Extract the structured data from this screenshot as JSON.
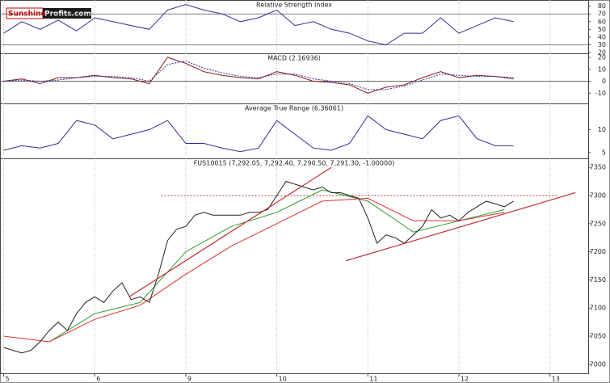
{
  "logo": {
    "brand": "Sunshine",
    "suffix": "Profits.com"
  },
  "chart_data": [
    {
      "type": "line",
      "title": "Relative Strength Index",
      "x": [
        0,
        0.2,
        0.4,
        0.6,
        0.8,
        1.0,
        1.2,
        1.4,
        1.6,
        1.8,
        2.0,
        2.2,
        2.4,
        2.6,
        2.8,
        3.0,
        3.2,
        3.4,
        3.6,
        3.8,
        4.0,
        4.2,
        4.4,
        4.6,
        4.8,
        5.0,
        5.2,
        5.4,
        5.6
      ],
      "series": [
        {
          "color": "#2e2e9e",
          "values": [
            45,
            60,
            50,
            62,
            48,
            65,
            60,
            55,
            50,
            75,
            82,
            75,
            70,
            60,
            65,
            75,
            55,
            60,
            50,
            45,
            35,
            30,
            45,
            45,
            65,
            45,
            55,
            65,
            60
          ]
        }
      ],
      "xlim": [
        -0.04,
        6.42
      ],
      "ylim": [
        19,
        88
      ],
      "yticks": [
        20,
        30,
        40,
        50,
        60,
        70,
        80
      ],
      "reference_lines": [
        70,
        30
      ]
    },
    {
      "type": "line",
      "title": "MACD (2.16936)",
      "x": [
        0,
        0.2,
        0.4,
        0.6,
        0.8,
        1.0,
        1.2,
        1.4,
        1.6,
        1.8,
        2.0,
        2.2,
        2.4,
        2.6,
        2.8,
        3.0,
        3.2,
        3.4,
        3.6,
        3.8,
        4.0,
        4.2,
        4.4,
        4.6,
        4.8,
        5.0,
        5.2,
        5.4,
        5.6
      ],
      "series": [
        {
          "color": "#8b1a1a",
          "values": [
            0,
            2,
            -2,
            3,
            3,
            5,
            3,
            2,
            -2,
            20,
            15,
            8,
            5,
            3,
            2,
            8,
            5,
            0,
            -1,
            -3,
            -10,
            -5,
            -3,
            3,
            8,
            3,
            5,
            4,
            2
          ]
        },
        {
          "color": "#2e2e9e",
          "dashed": true,
          "values": [
            0,
            1,
            0,
            1,
            3,
            4,
            4,
            3,
            0,
            14,
            17,
            11,
            7,
            4,
            3,
            6,
            6,
            2,
            0,
            -2,
            -7,
            -7,
            -4,
            1,
            6,
            5,
            4,
            4,
            3
          ]
        }
      ],
      "xlim": [
        -0.04,
        6.42
      ],
      "ylim": [
        -18.6,
        23.4
      ],
      "yticks": [
        -10,
        0,
        10,
        20
      ],
      "reference_lines": [
        0
      ]
    },
    {
      "type": "line",
      "title": "Average True Range (6.36061)",
      "x": [
        0,
        0.2,
        0.4,
        0.6,
        0.8,
        1.0,
        1.2,
        1.4,
        1.6,
        1.8,
        2.0,
        2.2,
        2.4,
        2.6,
        2.8,
        3.0,
        3.2,
        3.4,
        3.6,
        3.8,
        4.0,
        4.2,
        4.4,
        4.6,
        4.8,
        5.0,
        5.2,
        5.4,
        5.6
      ],
      "series": [
        {
          "color": "#2e2e9e",
          "values": [
            5.5,
            6.5,
            6,
            7,
            12,
            11,
            8,
            9,
            10,
            12,
            7,
            7,
            6,
            5.2,
            6,
            12,
            9,
            6,
            5.5,
            7,
            13,
            10,
            9,
            8,
            12,
            13,
            8,
            6.5,
            6.5
          ]
        }
      ],
      "xlim": [
        -0.04,
        6.42
      ],
      "ylim": [
        3.75,
        15.7
      ],
      "yticks": [
        5,
        10
      ]
    },
    {
      "type": "line",
      "title": "FUS10015 (7,292.05, 7,292.40, 7,290.50, 7,291.30, -1.00000)",
      "x": [
        0,
        0.1,
        0.2,
        0.3,
        0.4,
        0.5,
        0.6,
        0.7,
        0.8,
        0.9,
        1.0,
        1.1,
        1.2,
        1.3,
        1.4,
        1.5,
        1.6,
        1.7,
        1.8,
        1.9,
        2.0,
        2.1,
        2.2,
        2.3,
        2.4,
        2.5,
        2.6,
        2.7,
        2.8,
        2.9,
        3.0,
        3.1,
        3.2,
        3.3,
        3.4,
        3.5,
        3.6,
        3.7,
        3.8,
        3.9,
        4.0,
        4.1,
        4.2,
        4.3,
        4.4,
        4.5,
        4.6,
        4.7,
        4.8,
        4.9,
        5.0,
        5.1,
        5.2,
        5.3,
        5.4,
        5.5,
        5.6
      ],
      "series": [
        {
          "color": "#222222",
          "values": [
            7030,
            7025,
            7020,
            7025,
            7040,
            7060,
            7075,
            7060,
            7090,
            7110,
            7120,
            7110,
            7130,
            7145,
            7115,
            7120,
            7110,
            7160,
            7220,
            7240,
            7245,
            7265,
            7270,
            7265,
            7265,
            7265,
            7265,
            7270,
            7270,
            7275,
            7300,
            7325,
            7320,
            7315,
            7310,
            7315,
            7305,
            7305,
            7300,
            7295,
            7260,
            7215,
            7230,
            7225,
            7215,
            7230,
            7245,
            7275,
            7260,
            7265,
            7255,
            7270,
            7280,
            7290,
            7285,
            7280,
            7290
          ]
        }
      ],
      "averages": [
        {
          "color": "#2a9a2a",
          "x": [
            0.5,
            1.0,
            1.5,
            2.0,
            2.5,
            3.0,
            3.5,
            4.0,
            4.5,
            5.0,
            5.5
          ],
          "values": [
            7040,
            7090,
            7110,
            7200,
            7245,
            7270,
            7310,
            7290,
            7235,
            7255,
            7275
          ]
        },
        {
          "color": "#e03030",
          "x": [
            0,
            0.5,
            1.0,
            1.5,
            2.0,
            2.5,
            3.0,
            3.5,
            4.0,
            4.5,
            5.0,
            5.5
          ],
          "values": [
            7050,
            7040,
            7080,
            7105,
            7160,
            7210,
            7250,
            7290,
            7295,
            7255,
            7255,
            7270
          ]
        }
      ],
      "trendlines": [
        {
          "color": "#c03030",
          "x": [
            1.38,
            3.6
          ],
          "y": [
            7120,
            7350
          ]
        },
        {
          "color": "#c03030",
          "x": [
            3.76,
            6.28
          ],
          "y": [
            7184,
            7305
          ]
        }
      ],
      "reference_line": {
        "color": "#c03030",
        "y": 7300,
        "x": [
          1.73,
          6.1
        ]
      },
      "xlim": [
        -0.04,
        6.42
      ],
      "ylim": [
        6984,
        7366
      ],
      "yticks": [
        7000,
        7050,
        7100,
        7150,
        7200,
        7250,
        7300,
        7350
      ],
      "xticks": [
        {
          "value": 0,
          "label": "5"
        },
        {
          "value": 1,
          "label": "6"
        },
        {
          "value": 2,
          "label": "9"
        },
        {
          "value": 3,
          "label": "10"
        },
        {
          "value": 4,
          "label": "11"
        },
        {
          "value": 5,
          "label": "12"
        },
        {
          "value": 6,
          "label": "13"
        }
      ]
    }
  ]
}
